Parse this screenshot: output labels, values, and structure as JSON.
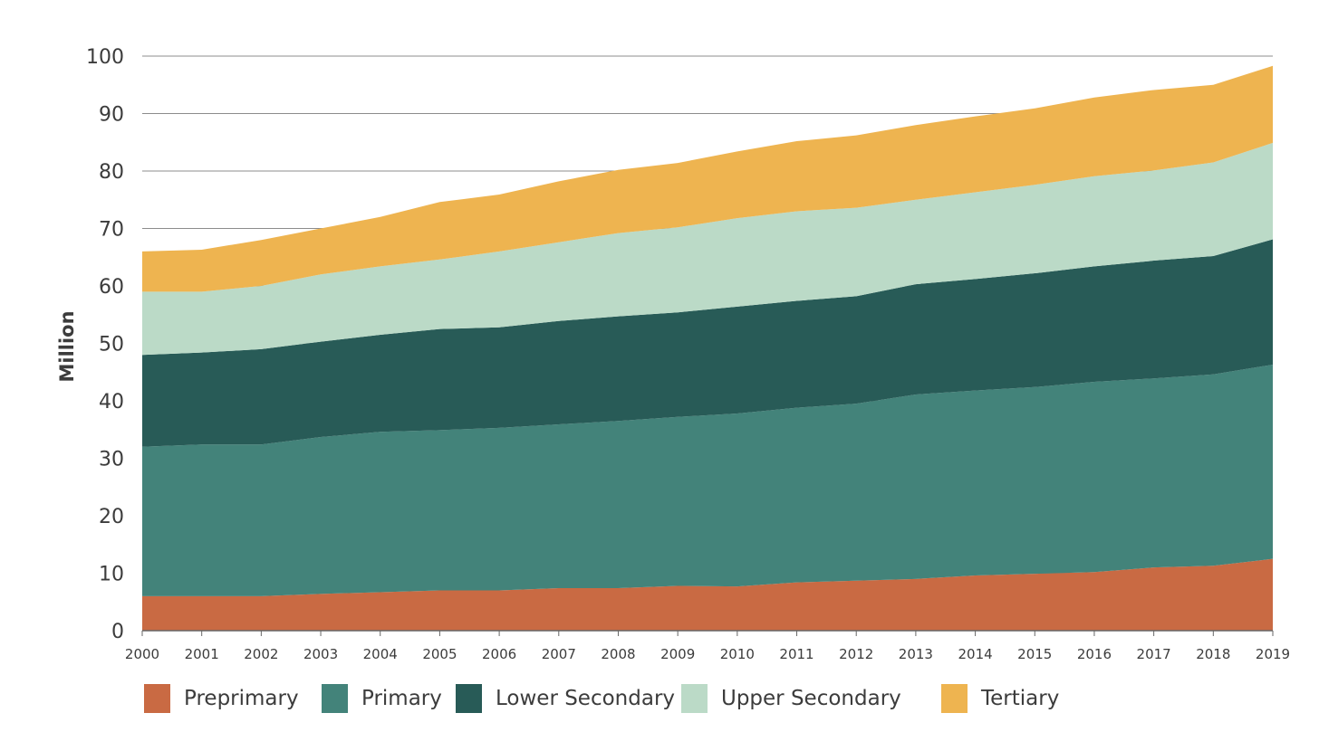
{
  "chart_data": {
    "type": "area",
    "stacked": true,
    "title": "",
    "xlabel": "",
    "ylabel": "Million",
    "ylim": [
      0,
      100
    ],
    "yticks": [
      0,
      10,
      20,
      30,
      40,
      50,
      60,
      70,
      80,
      90,
      100
    ],
    "categories": [
      "2000",
      "2001",
      "2002",
      "2003",
      "2004",
      "2005",
      "2006",
      "2007",
      "2008",
      "2009",
      "2010",
      "2011",
      "2012",
      "2013",
      "2014",
      "2015",
      "2016",
      "2017",
      "2018",
      "2019"
    ],
    "grid": true,
    "legend_position": "bottom",
    "series": [
      {
        "name": "Preprimary",
        "color": "#c96a43",
        "values": [
          6.0,
          6.0,
          6.0,
          6.4,
          6.7,
          7.0,
          7.0,
          7.4,
          7.4,
          7.8,
          7.7,
          8.4,
          8.7,
          9.0,
          9.6,
          9.9,
          10.2,
          11.0,
          11.3,
          12.5
        ]
      },
      {
        "name": "Primary",
        "color": "#43837a",
        "values": [
          26.0,
          26.4,
          26.4,
          27.3,
          27.9,
          27.9,
          28.3,
          28.5,
          29.1,
          29.4,
          30.1,
          30.4,
          30.8,
          32.1,
          32.2,
          32.5,
          33.1,
          32.9,
          33.3,
          33.8
        ]
      },
      {
        "name": "Lower Secondary",
        "color": "#285b57",
        "values": [
          16.0,
          16.0,
          16.6,
          16.6,
          16.9,
          17.6,
          17.5,
          18.0,
          18.2,
          18.2,
          18.6,
          18.6,
          18.7,
          19.2,
          19.4,
          19.8,
          20.1,
          20.5,
          20.6,
          21.8
        ]
      },
      {
        "name": "Upper Secondary",
        "color": "#bbdac7",
        "values": [
          11.0,
          10.6,
          11.0,
          11.7,
          11.9,
          12.1,
          13.2,
          13.7,
          14.5,
          14.8,
          15.4,
          15.6,
          15.4,
          14.7,
          15.1,
          15.4,
          15.7,
          15.7,
          16.3,
          16.8
        ]
      },
      {
        "name": "Tertiary",
        "color": "#eeb450",
        "values": [
          7.0,
          7.3,
          8.0,
          8.0,
          8.6,
          10.0,
          9.9,
          10.6,
          11.0,
          11.2,
          11.6,
          12.2,
          12.6,
          13.0,
          13.2,
          13.3,
          13.7,
          14.0,
          13.5,
          13.4
        ]
      }
    ]
  }
}
